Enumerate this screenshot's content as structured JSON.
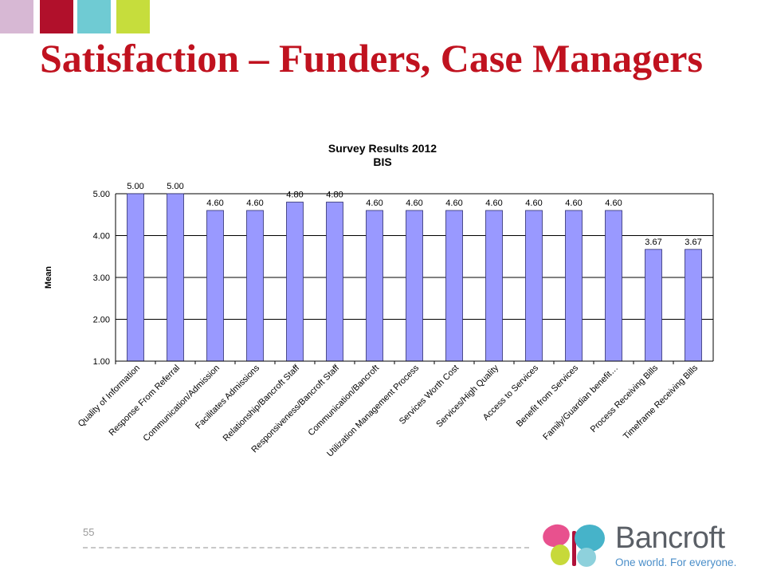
{
  "header": {
    "title": "Satisfaction – Funders, Case Managers",
    "squares": [
      {
        "name": "pink-square",
        "color": "#d7b8d4"
      },
      {
        "name": "red-square",
        "color": "#b1102b"
      },
      {
        "name": "cyan-square",
        "color": "#6fcbd3"
      },
      {
        "name": "lime-square",
        "color": "#c6dd3c"
      }
    ]
  },
  "footer": {
    "page_number": "55"
  },
  "logo": {
    "word": "Bancroft",
    "tagline": "One world. For everyone."
  },
  "colors": {
    "title": "#c0121f",
    "bar": "#9999ff",
    "bar_stroke": "#2e2e6e"
  },
  "chart_data": {
    "type": "bar",
    "title_lines": [
      "Survey Results 2012",
      "BIS"
    ],
    "ylabel": "Mean",
    "xlabel": "",
    "ylim": [
      1.0,
      5.0
    ],
    "yticks": [
      "1.00",
      "2.00",
      "3.00",
      "4.00",
      "5.00"
    ],
    "grid": true,
    "categories": [
      "Quality of Information",
      "Response From Referral",
      "Communication/Admission",
      "Facilitates Admissions",
      "Relationship/Bancroft Staff",
      "Responsiveness/Bancroft Staff",
      "Communication/Bancroft",
      "Utilization Management Process",
      "Services Worth Cost",
      "Services/High Quality",
      "Access to Services",
      "Benefit from Services",
      "Family/Guardian benefit…",
      "Process Receiving Bills",
      "Timeframe Receiving Bills"
    ],
    "values": [
      5.0,
      5.0,
      4.6,
      4.6,
      4.8,
      4.8,
      4.6,
      4.6,
      4.6,
      4.6,
      4.6,
      4.6,
      4.6,
      3.67,
      3.67
    ],
    "data_labels": [
      "5.00",
      "5.00",
      "4.60",
      "4.60",
      "4.80",
      "4.80",
      "4.60",
      "4.60",
      "4.60",
      "4.60",
      "4.60",
      "4.60",
      "4.60",
      "3.67",
      "3.67"
    ]
  }
}
